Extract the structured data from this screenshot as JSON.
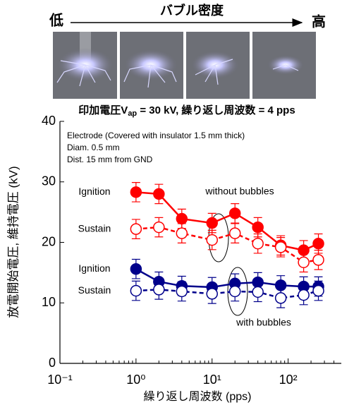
{
  "header": {
    "low": "低",
    "label": "バブル密度",
    "high": "高"
  },
  "chart_data": {
    "type": "line",
    "subtitle": [
      "印加電圧V",
      "ap",
      " = 30 kV, 繰り返し周波数 = 4 pps"
    ],
    "notes": [
      "Electrode (Covered with insulator 1.5 mm thick)",
      "Diam. 0.5 mm",
      "Dist. 15 mm from GND"
    ],
    "groups": [
      "without bubbles",
      "with bubbles"
    ],
    "xlabel": "繰り返し周波数 (pps)",
    "ylabel": "放電開始電圧, 維持電圧 (kV)",
    "xscale": "log",
    "xlim": [
      0.1,
      500
    ],
    "xticks": [
      {
        "value": 0.1,
        "label": "10⁻¹"
      },
      {
        "value": 1,
        "label": "10⁰"
      },
      {
        "value": 10,
        "label": "10¹"
      },
      {
        "value": 100,
        "label": "10²"
      }
    ],
    "xminorticks": [
      0.2,
      0.3,
      0.4,
      0.5,
      0.6,
      0.7,
      0.8,
      0.9,
      2,
      3,
      4,
      5,
      6,
      7,
      8,
      9,
      20,
      30,
      40,
      50,
      60,
      70,
      80,
      90,
      200,
      300,
      400
    ],
    "ylim": [
      0,
      40
    ],
    "yticks": [
      0,
      10,
      20,
      30,
      40
    ],
    "x": [
      1,
      2,
      4,
      10,
      20,
      40,
      80,
      160,
      250
    ],
    "series": [
      {
        "name": "Ignition",
        "color": "#ff0000",
        "marker": "filled",
        "dashed": false,
        "values": [
          28.3,
          28.0,
          23.9,
          23.2,
          24.8,
          22.5,
          19.5,
          18.7,
          19.8
        ],
        "errors": [
          1.6,
          1.6,
          1.6,
          1.6,
          1.6,
          1.6,
          1.6,
          1.6,
          1.6
        ]
      },
      {
        "name": "Sustain",
        "color": "#ff0000",
        "marker": "open",
        "dashed": true,
        "values": [
          22.2,
          22.5,
          21.5,
          20.4,
          21.5,
          19.8,
          19.2,
          16.7,
          17.1
        ],
        "errors": [
          1.6,
          1.6,
          1.6,
          1.6,
          1.6,
          1.6,
          1.6,
          1.6,
          1.6
        ]
      },
      {
        "name": "Ignition",
        "color": "#00008b",
        "marker": "filled",
        "dashed": false,
        "values": [
          15.6,
          13.5,
          12.8,
          12.6,
          13.2,
          13.4,
          12.9,
          12.7,
          12.7
        ],
        "errors": [
          1.6,
          1.6,
          1.6,
          1.6,
          1.6,
          1.6,
          1.6,
          1.6,
          1.6
        ]
      },
      {
        "name": "Sustain",
        "color": "#00008b",
        "marker": "open",
        "dashed": true,
        "values": [
          12.0,
          12.2,
          11.9,
          11.5,
          11.9,
          11.8,
          10.8,
          11.3,
          12.0
        ],
        "errors": [
          1.6,
          1.6,
          1.6,
          1.6,
          1.6,
          1.6,
          1.6,
          1.6,
          1.6
        ]
      }
    ]
  }
}
